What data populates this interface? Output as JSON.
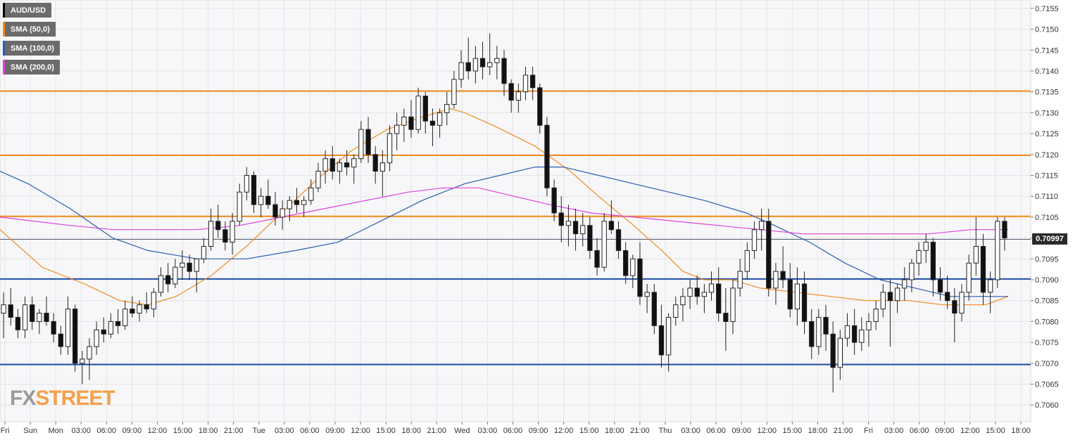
{
  "legend": [
    {
      "label": "AUD/USD",
      "color": "#000000"
    },
    {
      "label": "SMA (50,0)",
      "color": "#f08c1e"
    },
    {
      "label": "SMA (100,0)",
      "color": "#2a5db0"
    },
    {
      "label": "SMA (200,0)",
      "color": "#e040e0"
    }
  ],
  "logo": {
    "part1": "FX",
    "part2": "STREET"
  },
  "current_price": "0.70997",
  "chart_data": {
    "type": "candlestick",
    "title": "AUD/USD",
    "ylim": [
      0.7056,
      0.7157
    ],
    "y_ticks": [
      "0.7155",
      "0.7150",
      "0.7145",
      "0.7140",
      "0.7135",
      "0.7130",
      "0.7125",
      "0.7120",
      "0.7115",
      "0.7110",
      "0.7105",
      "0.7100",
      "0.7095",
      "0.7090",
      "0.7085",
      "0.7080",
      "0.7075",
      "0.7070",
      "0.7065",
      "0.7060"
    ],
    "x_ticks": [
      "Fri",
      "Sun",
      "Mon",
      "03:00",
      "06:00",
      "09:00",
      "12:00",
      "15:00",
      "18:00",
      "21:00",
      "Tue",
      "03:00",
      "06:00",
      "09:00",
      "12:00",
      "15:00",
      "18:00",
      "21:00",
      "Wed",
      "03:00",
      "06:00",
      "09:00",
      "12:00",
      "15:00",
      "18:00",
      "21:00",
      "Thu",
      "03:00",
      "06:00",
      "09:00",
      "12:00",
      "15:00",
      "18:00",
      "21:00",
      "Fri",
      "03:00",
      "06:00",
      "09:00",
      "12:00",
      "15:00",
      "18:00"
    ],
    "horizontal_levels": [
      {
        "value": 0.71352,
        "color": "#f08c1e"
      },
      {
        "value": 0.71198,
        "color": "#f08c1e"
      },
      {
        "value": 0.71052,
        "color": "#f08c1e"
      },
      {
        "value": 0.70902,
        "color": "#1f4fa8"
      },
      {
        "value": 0.70697,
        "color": "#1f4fa8"
      }
    ],
    "current_price": 0.70997,
    "sma50": [
      [
        0,
        0.7102
      ],
      [
        60,
        0.7093
      ],
      [
        120,
        0.7089
      ],
      [
        170,
        0.7085
      ],
      [
        210,
        0.7084
      ],
      [
        250,
        0.7086
      ],
      [
        300,
        0.7091
      ],
      [
        350,
        0.7098
      ],
      [
        400,
        0.7106
      ],
      [
        450,
        0.7114
      ],
      [
        500,
        0.7121
      ],
      [
        550,
        0.7126
      ],
      [
        600,
        0.7129
      ],
      [
        640,
        0.7131
      ],
      [
        660,
        0.713
      ],
      [
        700,
        0.7127
      ],
      [
        760,
        0.7122
      ],
      [
        810,
        0.7116
      ],
      [
        850,
        0.711
      ],
      [
        900,
        0.7103
      ],
      [
        940,
        0.7097
      ],
      [
        970,
        0.7092
      ],
      [
        1000,
        0.709
      ],
      [
        1040,
        0.709
      ],
      [
        1080,
        0.7088
      ],
      [
        1130,
        0.7087
      ],
      [
        1180,
        0.7086
      ],
      [
        1230,
        0.7085
      ],
      [
        1290,
        0.7085
      ],
      [
        1340,
        0.7084
      ],
      [
        1400,
        0.7084
      ],
      [
        1432,
        0.7086
      ]
    ],
    "sma100": [
      [
        0,
        0.7116
      ],
      [
        40,
        0.7113
      ],
      [
        100,
        0.7107
      ],
      [
        160,
        0.71
      ],
      [
        210,
        0.7097
      ],
      [
        280,
        0.7095
      ],
      [
        350,
        0.7095
      ],
      [
        420,
        0.7097
      ],
      [
        480,
        0.7099
      ],
      [
        540,
        0.7104
      ],
      [
        600,
        0.7109
      ],
      [
        660,
        0.7113
      ],
      [
        710,
        0.7115
      ],
      [
        760,
        0.7117
      ],
      [
        800,
        0.7117
      ],
      [
        850,
        0.7115
      ],
      [
        900,
        0.7113
      ],
      [
        950,
        0.7111
      ],
      [
        1000,
        0.7109
      ],
      [
        1060,
        0.7106
      ],
      [
        1100,
        0.7103
      ],
      [
        1150,
        0.7099
      ],
      [
        1200,
        0.7094
      ],
      [
        1250,
        0.709
      ],
      [
        1300,
        0.7088
      ],
      [
        1350,
        0.7086
      ],
      [
        1400,
        0.7086
      ],
      [
        1432,
        0.7086
      ]
    ],
    "sma200": [
      [
        0,
        0.7105
      ],
      [
        50,
        0.7104
      ],
      [
        100,
        0.7103
      ],
      [
        160,
        0.7102
      ],
      [
        220,
        0.7102
      ],
      [
        280,
        0.7102
      ],
      [
        340,
        0.7103
      ],
      [
        400,
        0.7105
      ],
      [
        460,
        0.7107
      ],
      [
        520,
        0.7109
      ],
      [
        580,
        0.7111
      ],
      [
        630,
        0.7112
      ],
      [
        680,
        0.7112
      ],
      [
        730,
        0.711
      ],
      [
        780,
        0.7108
      ],
      [
        840,
        0.7106
      ],
      [
        900,
        0.7105
      ],
      [
        960,
        0.7104
      ],
      [
        1020,
        0.7103
      ],
      [
        1080,
        0.7102
      ],
      [
        1140,
        0.7101
      ],
      [
        1200,
        0.7101
      ],
      [
        1260,
        0.7101
      ],
      [
        1320,
        0.7101
      ],
      [
        1380,
        0.7102
      ],
      [
        1432,
        0.7102
      ]
    ],
    "candles": [
      [
        0.7082,
        0.7087,
        0.7076,
        0.7084
      ],
      [
        0.7084,
        0.7088,
        0.7079,
        0.7081
      ],
      [
        0.7081,
        0.7083,
        0.7076,
        0.7078
      ],
      [
        0.7078,
        0.7086,
        0.7076,
        0.7084
      ],
      [
        0.7084,
        0.7086,
        0.7078,
        0.708
      ],
      [
        0.708,
        0.7083,
        0.7077,
        0.7082
      ],
      [
        0.7082,
        0.7086,
        0.7079,
        0.708
      ],
      [
        0.708,
        0.7082,
        0.7075,
        0.7077
      ],
      [
        0.7077,
        0.7079,
        0.7072,
        0.7074
      ],
      [
        0.7074,
        0.7086,
        0.7072,
        0.7083
      ],
      [
        0.7083,
        0.7084,
        0.7068,
        0.707
      ],
      [
        0.707,
        0.7073,
        0.7065,
        0.7071
      ],
      [
        0.7071,
        0.7076,
        0.7066,
        0.7074
      ],
      [
        0.7074,
        0.708,
        0.7072,
        0.7078
      ],
      [
        0.7078,
        0.7081,
        0.7075,
        0.7077
      ],
      [
        0.7077,
        0.7082,
        0.7076,
        0.708
      ],
      [
        0.708,
        0.7083,
        0.7077,
        0.7079
      ],
      [
        0.7079,
        0.7085,
        0.7078,
        0.7083
      ],
      [
        0.7083,
        0.7086,
        0.7081,
        0.7082
      ],
      [
        0.7082,
        0.7085,
        0.708,
        0.7084
      ],
      [
        0.7084,
        0.7087,
        0.7082,
        0.7083
      ],
      [
        0.7083,
        0.7088,
        0.7081,
        0.7087
      ],
      [
        0.7087,
        0.7093,
        0.7086,
        0.7091
      ],
      [
        0.7091,
        0.7094,
        0.7087,
        0.7089
      ],
      [
        0.7089,
        0.7095,
        0.7088,
        0.7093
      ],
      [
        0.7093,
        0.7097,
        0.709,
        0.7094
      ],
      [
        0.7094,
        0.7096,
        0.709,
        0.7092
      ],
      [
        0.7092,
        0.7094,
        0.7087,
        0.7095
      ],
      [
        0.7095,
        0.71,
        0.7094,
        0.7098
      ],
      [
        0.7098,
        0.7107,
        0.7097,
        0.7104
      ],
      [
        0.7104,
        0.7108,
        0.71,
        0.7102
      ],
      [
        0.7102,
        0.7104,
        0.7097,
        0.7099
      ],
      [
        0.7099,
        0.7106,
        0.7096,
        0.7104
      ],
      [
        0.7104,
        0.7113,
        0.7103,
        0.7111
      ],
      [
        0.7111,
        0.7117,
        0.7109,
        0.7115
      ],
      [
        0.7115,
        0.7116,
        0.7106,
        0.7108
      ],
      [
        0.7108,
        0.7112,
        0.7105,
        0.711
      ],
      [
        0.711,
        0.7114,
        0.7107,
        0.7108
      ],
      [
        0.7108,
        0.7111,
        0.7103,
        0.7105
      ],
      [
        0.7105,
        0.7109,
        0.7102,
        0.7107
      ],
      [
        0.7107,
        0.711,
        0.7104,
        0.7109
      ],
      [
        0.7109,
        0.7112,
        0.7106,
        0.7108
      ],
      [
        0.7108,
        0.711,
        0.7105,
        0.7109
      ],
      [
        0.7109,
        0.7114,
        0.7108,
        0.7112
      ],
      [
        0.7112,
        0.7118,
        0.7111,
        0.7116
      ],
      [
        0.7116,
        0.7121,
        0.7113,
        0.7119
      ],
      [
        0.7119,
        0.7122,
        0.7114,
        0.7116
      ],
      [
        0.7116,
        0.7119,
        0.7113,
        0.7118
      ],
      [
        0.7118,
        0.7121,
        0.7115,
        0.7117
      ],
      [
        0.7117,
        0.712,
        0.7113,
        0.7119
      ],
      [
        0.7119,
        0.7128,
        0.7118,
        0.7126
      ],
      [
        0.7126,
        0.7129,
        0.7118,
        0.712
      ],
      [
        0.712,
        0.7122,
        0.7113,
        0.7116
      ],
      [
        0.7116,
        0.7121,
        0.711,
        0.7118
      ],
      [
        0.7118,
        0.7127,
        0.7116,
        0.7125
      ],
      [
        0.7125,
        0.713,
        0.7121,
        0.7127
      ],
      [
        0.7127,
        0.7131,
        0.7123,
        0.7129
      ],
      [
        0.7129,
        0.7133,
        0.7124,
        0.7126
      ],
      [
        0.7126,
        0.7136,
        0.7125,
        0.7134
      ],
      [
        0.7134,
        0.7135,
        0.7125,
        0.7128
      ],
      [
        0.7128,
        0.7131,
        0.7122,
        0.7127
      ],
      [
        0.7127,
        0.7131,
        0.7124,
        0.713
      ],
      [
        0.713,
        0.7135,
        0.7127,
        0.7132
      ],
      [
        0.7132,
        0.714,
        0.7131,
        0.7138
      ],
      [
        0.7138,
        0.7145,
        0.7136,
        0.7142
      ],
      [
        0.7142,
        0.7148,
        0.7138,
        0.714
      ],
      [
        0.714,
        0.7146,
        0.7137,
        0.7143
      ],
      [
        0.7143,
        0.7147,
        0.7138,
        0.7141
      ],
      [
        0.7141,
        0.7149,
        0.7139,
        0.7142
      ],
      [
        0.7142,
        0.7146,
        0.7138,
        0.7143
      ],
      [
        0.7143,
        0.7145,
        0.7134,
        0.7137
      ],
      [
        0.7137,
        0.7138,
        0.713,
        0.7133
      ],
      [
        0.7133,
        0.7137,
        0.713,
        0.7135
      ],
      [
        0.7135,
        0.7141,
        0.7133,
        0.7139
      ],
      [
        0.7139,
        0.7141,
        0.7133,
        0.7136
      ],
      [
        0.7136,
        0.7137,
        0.7125,
        0.7127
      ],
      [
        0.7127,
        0.7129,
        0.711,
        0.7112
      ],
      [
        0.7112,
        0.7114,
        0.7104,
        0.7106
      ],
      [
        0.7106,
        0.711,
        0.7099,
        0.7103
      ],
      [
        0.7103,
        0.7108,
        0.7098,
        0.7104
      ],
      [
        0.7104,
        0.7107,
        0.7097,
        0.7101
      ],
      [
        0.7101,
        0.7106,
        0.7098,
        0.7103
      ],
      [
        0.7103,
        0.7105,
        0.7095,
        0.7097
      ],
      [
        0.7097,
        0.71,
        0.7091,
        0.7093
      ],
      [
        0.7093,
        0.7106,
        0.7092,
        0.7104
      ],
      [
        0.7104,
        0.7109,
        0.7101,
        0.7102
      ],
      [
        0.7102,
        0.7104,
        0.7095,
        0.7097
      ],
      [
        0.7097,
        0.7099,
        0.7089,
        0.7091
      ],
      [
        0.7091,
        0.7096,
        0.7088,
        0.7095
      ],
      [
        0.7095,
        0.7099,
        0.7084,
        0.7086
      ],
      [
        0.7086,
        0.7089,
        0.7082,
        0.7087
      ],
      [
        0.7087,
        0.7089,
        0.7077,
        0.7079
      ],
      [
        0.7079,
        0.7084,
        0.7069,
        0.7072
      ],
      [
        0.7072,
        0.7082,
        0.7068,
        0.7081
      ],
      [
        0.7081,
        0.7086,
        0.7079,
        0.7084
      ],
      [
        0.7084,
        0.7088,
        0.708,
        0.7086
      ],
      [
        0.7086,
        0.709,
        0.7083,
        0.7088
      ],
      [
        0.7088,
        0.7091,
        0.7084,
        0.7086
      ],
      [
        0.7086,
        0.7089,
        0.7082,
        0.7087
      ],
      [
        0.7087,
        0.7092,
        0.7085,
        0.7089
      ],
      [
        0.7089,
        0.7093,
        0.708,
        0.7082
      ],
      [
        0.7082,
        0.7088,
        0.7073,
        0.708
      ],
      [
        0.708,
        0.709,
        0.7077,
        0.7088
      ],
      [
        0.7088,
        0.7095,
        0.7086,
        0.7092
      ],
      [
        0.7092,
        0.7099,
        0.709,
        0.7097
      ],
      [
        0.7097,
        0.7104,
        0.7095,
        0.7102
      ],
      [
        0.7102,
        0.7107,
        0.7097,
        0.7104
      ],
      [
        0.7104,
        0.7107,
        0.7086,
        0.7088
      ],
      [
        0.7088,
        0.7094,
        0.7084,
        0.7092
      ],
      [
        0.7092,
        0.7098,
        0.7088,
        0.709
      ],
      [
        0.709,
        0.7094,
        0.7081,
        0.7083
      ],
      [
        0.7083,
        0.7093,
        0.7079,
        0.7089
      ],
      [
        0.7089,
        0.7092,
        0.7077,
        0.708
      ],
      [
        0.708,
        0.7083,
        0.7071,
        0.7074
      ],
      [
        0.7074,
        0.7083,
        0.7072,
        0.7081
      ],
      [
        0.7081,
        0.7084,
        0.7073,
        0.7077
      ],
      [
        0.7077,
        0.708,
        0.7063,
        0.7069
      ],
      [
        0.7069,
        0.7078,
        0.7066,
        0.7076
      ],
      [
        0.7076,
        0.7082,
        0.7074,
        0.7079
      ],
      [
        0.7079,
        0.7083,
        0.7072,
        0.7075
      ],
      [
        0.7075,
        0.7081,
        0.7073,
        0.7078
      ],
      [
        0.7078,
        0.7082,
        0.7074,
        0.708
      ],
      [
        0.708,
        0.7085,
        0.7078,
        0.7083
      ],
      [
        0.7083,
        0.7089,
        0.7081,
        0.7087
      ],
      [
        0.7087,
        0.709,
        0.7074,
        0.7085
      ],
      [
        0.7085,
        0.7089,
        0.7082,
        0.7088
      ],
      [
        0.7088,
        0.7093,
        0.7085,
        0.709
      ],
      [
        0.709,
        0.7095,
        0.7087,
        0.7094
      ],
      [
        0.7094,
        0.7099,
        0.7091,
        0.7097
      ],
      [
        0.7097,
        0.7101,
        0.7094,
        0.7099
      ],
      [
        0.7099,
        0.71,
        0.7086,
        0.709
      ],
      [
        0.709,
        0.7093,
        0.7085,
        0.7087
      ],
      [
        0.7087,
        0.7091,
        0.7083,
        0.7085
      ],
      [
        0.7085,
        0.7088,
        0.7075,
        0.7082
      ],
      [
        0.7082,
        0.7089,
        0.708,
        0.7087
      ],
      [
        0.7087,
        0.7096,
        0.7085,
        0.7094
      ],
      [
        0.7094,
        0.7105,
        0.7091,
        0.7098
      ],
      [
        0.7098,
        0.7101,
        0.7084,
        0.7087
      ],
      [
        0.7087,
        0.7092,
        0.7082,
        0.709
      ],
      [
        0.709,
        0.7105,
        0.7088,
        0.7104
      ],
      [
        0.7104,
        0.7105,
        0.7097,
        0.71
      ]
    ]
  }
}
